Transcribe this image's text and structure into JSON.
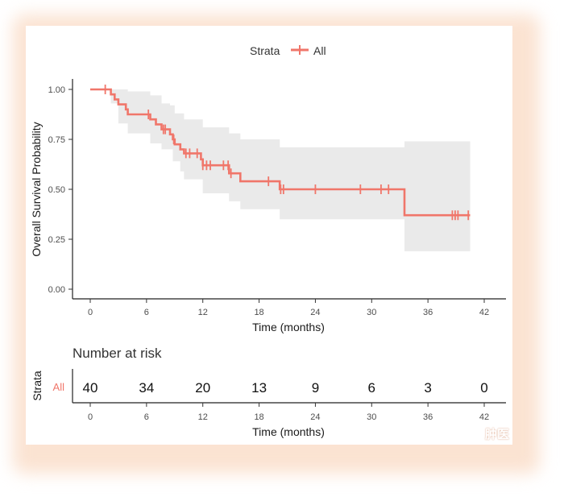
{
  "chart_data": {
    "type": "line",
    "subtype": "kaplan-meier",
    "legend": {
      "title": "Strata",
      "entries": [
        "All"
      ],
      "position": "top",
      "color": "#F0766A"
    },
    "ylabel": "Overall Survival Probability",
    "xlabel": "Time (months)",
    "xlim": [
      0,
      42
    ],
    "ylim": [
      0,
      1
    ],
    "x_ticks": [
      0,
      6,
      12,
      18,
      24,
      30,
      36,
      42
    ],
    "y_ticks": [
      "0.00",
      "0.25",
      "0.50",
      "0.75",
      "1.00"
    ],
    "series": [
      {
        "name": "All",
        "color": "#F0766A",
        "survival_steps": [
          [
            0,
            1.0
          ],
          [
            2.2,
            0.975
          ],
          [
            2.6,
            0.95
          ],
          [
            3.0,
            0.925
          ],
          [
            3.8,
            0.9
          ],
          [
            4.0,
            0.875
          ],
          [
            6.4,
            0.85
          ],
          [
            7.0,
            0.825
          ],
          [
            7.6,
            0.8
          ],
          [
            8.5,
            0.775
          ],
          [
            8.8,
            0.75
          ],
          [
            9.0,
            0.725
          ],
          [
            9.6,
            0.7
          ],
          [
            10.0,
            0.68
          ],
          [
            11.8,
            0.65
          ],
          [
            12.0,
            0.62
          ],
          [
            14.8,
            0.58
          ],
          [
            16.0,
            0.54
          ],
          [
            20.2,
            0.5
          ],
          [
            33.5,
            0.37
          ],
          [
            40.5,
            0.37
          ]
        ],
        "ci_upper": [
          [
            0,
            1.0
          ],
          [
            3.0,
            1.0
          ],
          [
            4.0,
            0.99
          ],
          [
            6.4,
            0.97
          ],
          [
            7.6,
            0.93
          ],
          [
            8.5,
            0.92
          ],
          [
            9.0,
            0.88
          ],
          [
            10.0,
            0.85
          ],
          [
            12.0,
            0.81
          ],
          [
            14.8,
            0.78
          ],
          [
            16.0,
            0.75
          ],
          [
            20.2,
            0.71
          ],
          [
            33.5,
            0.74
          ],
          [
            40.5,
            0.74
          ]
        ],
        "ci_lower": [
          [
            0,
            1.0
          ],
          [
            2.2,
            0.93
          ],
          [
            3.0,
            0.83
          ],
          [
            4.0,
            0.78
          ],
          [
            6.4,
            0.73
          ],
          [
            7.6,
            0.7
          ],
          [
            8.8,
            0.64
          ],
          [
            9.6,
            0.59
          ],
          [
            10.0,
            0.55
          ],
          [
            12.0,
            0.48
          ],
          [
            14.8,
            0.44
          ],
          [
            16.0,
            0.4
          ],
          [
            20.2,
            0.35
          ],
          [
            33.5,
            0.19
          ],
          [
            40.5,
            0.19
          ]
        ],
        "censor_times": [
          1.6,
          6.2,
          7.8,
          8.0,
          8.9,
          10.2,
          10.6,
          11.4,
          12.0,
          12.4,
          12.8,
          14.2,
          14.7,
          15.0,
          19.0,
          20.3,
          20.6,
          24.0,
          28.8,
          31.0,
          31.8,
          38.6,
          38.9,
          39.2,
          40.3
        ]
      }
    ],
    "risk_table": {
      "title": "Number at risk",
      "strata_label": "Strata",
      "row_label": "All",
      "times": [
        0,
        6,
        12,
        18,
        24,
        30,
        36,
        42
      ],
      "counts": [
        "40",
        "34",
        "20",
        "13",
        "9",
        "6",
        "3",
        "0"
      ],
      "xlabel": "Time (months)"
    }
  }
}
